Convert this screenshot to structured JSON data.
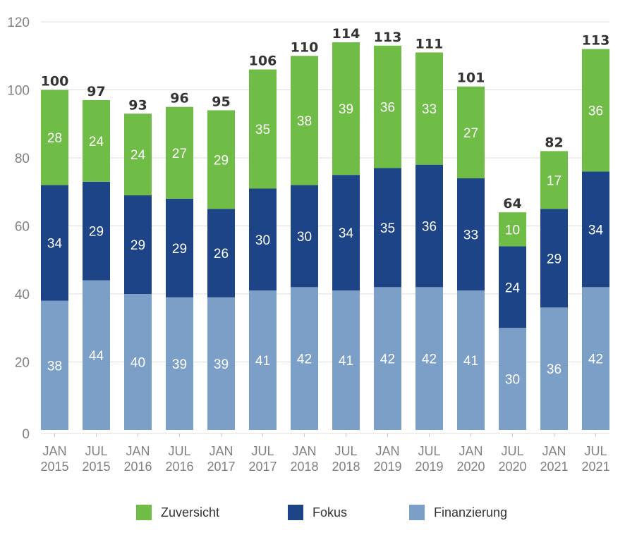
{
  "chart_data": {
    "type": "bar",
    "stacked": true,
    "title": "",
    "xlabel": "",
    "ylabel": "",
    "ylim": [
      0,
      120
    ],
    "yticks": [
      0,
      20,
      40,
      60,
      80,
      100,
      120
    ],
    "grid": true,
    "legend_position": "bottom",
    "categories": [
      [
        "JAN",
        "2015"
      ],
      [
        "JUL",
        "2015"
      ],
      [
        "JAN",
        "2016"
      ],
      [
        "JUL",
        "2016"
      ],
      [
        "JAN",
        "2017"
      ],
      [
        "JUL",
        "2017"
      ],
      [
        "JAN",
        "2018"
      ],
      [
        "JUL",
        "2018"
      ],
      [
        "JAN",
        "2019"
      ],
      [
        "JUL",
        "2019"
      ],
      [
        "JAN",
        "2020"
      ],
      [
        "JUL",
        "2020"
      ],
      [
        "JAN",
        "2021"
      ],
      [
        "JUL",
        "2021"
      ]
    ],
    "series": [
      {
        "name": "Finanzierung",
        "color": "#7b9fc6",
        "values": [
          38,
          44,
          40,
          39,
          39,
          41,
          42,
          41,
          42,
          42,
          41,
          30,
          36,
          42
        ]
      },
      {
        "name": "Fokus",
        "color": "#1c4486",
        "values": [
          34,
          29,
          29,
          29,
          26,
          30,
          30,
          34,
          35,
          36,
          33,
          24,
          29,
          34
        ]
      },
      {
        "name": "Zuversicht",
        "color": "#6fbd47",
        "values": [
          28,
          24,
          24,
          27,
          29,
          35,
          38,
          39,
          36,
          33,
          27,
          10,
          17,
          36
        ]
      }
    ],
    "totals": [
      100,
      97,
      93,
      96,
      95,
      106,
      110,
      114,
      113,
      111,
      101,
      64,
      82,
      113
    ]
  },
  "legend": [
    {
      "label": "Zuversicht",
      "color": "#6fbd47"
    },
    {
      "label": "Fokus",
      "color": "#1c4486"
    },
    {
      "label": "Finanzierung",
      "color": "#7b9fc6"
    }
  ]
}
